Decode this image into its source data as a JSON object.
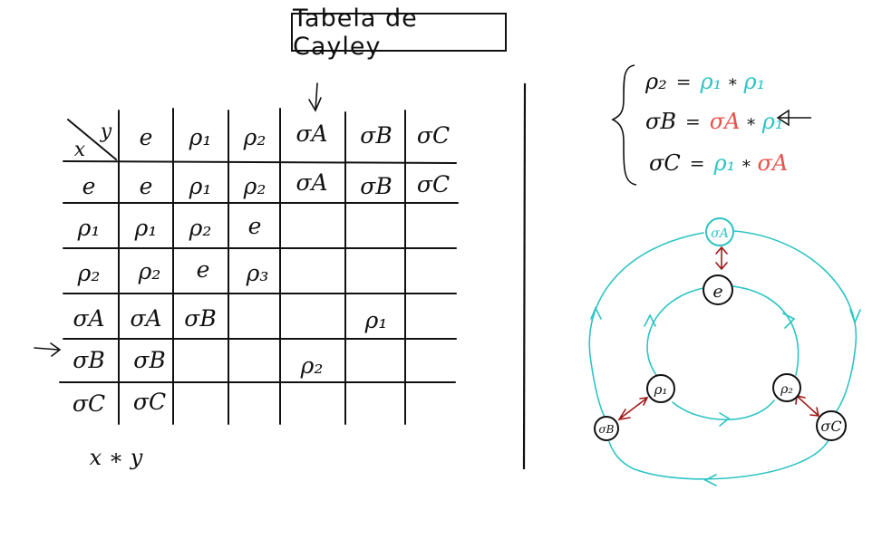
{
  "title": "Tabela de Cayley",
  "table": {
    "corner_x": "x",
    "corner_y": "y",
    "col_headers": [
      "e",
      "ρ₁",
      "ρ₂",
      "σA",
      "σB",
      "σC"
    ],
    "row_headers": [
      "e",
      "ρ₁",
      "ρ₂",
      "σA",
      "σB",
      "σC"
    ],
    "cells": [
      [
        "e",
        "ρ₁",
        "ρ₂",
        "σA",
        "σB",
        "σC"
      ],
      [
        "ρ₁",
        "ρ₂",
        "e",
        "",
        "",
        ""
      ],
      [
        "ρ₂",
        "e",
        "ρ₃",
        "",
        "",
        ""
      ],
      [
        "σA",
        "σB",
        "",
        "",
        "ρ₁",
        ""
      ],
      [
        "σB",
        "",
        "",
        "ρ₂",
        "",
        ""
      ],
      [
        "σC",
        "",
        "",
        "",
        "",
        ""
      ]
    ],
    "operation": "x ∗ y"
  },
  "relations": [
    {
      "lhs": "ρ₂",
      "op": "=",
      "a": "ρ₁",
      "star": "∗",
      "b": "ρ₁",
      "a_color": "#2ec4c4",
      "b_color": "#2ec4c4"
    },
    {
      "lhs": "σB",
      "op": "=",
      "a": "σA",
      "star": "∗",
      "b": "ρ₁",
      "a_color": "#e8524a",
      "b_color": "#2ec4c4"
    },
    {
      "lhs": "σC",
      "op": "=",
      "a": "ρ₁",
      "star": "∗",
      "b": "σA",
      "a_color": "#2ec4c4",
      "b_color": "#e8524a"
    }
  ],
  "graph_nodes": {
    "sigma_a": "σA",
    "e": "e",
    "rho1": "ρ₁",
    "rho2": "ρ₂",
    "sigma_b": "σB",
    "sigma_c": "σC"
  },
  "colors": {
    "ink": "#111111",
    "cyan": "#2ec4c4",
    "red": "#e8524a",
    "dark_red": "#a01818"
  }
}
